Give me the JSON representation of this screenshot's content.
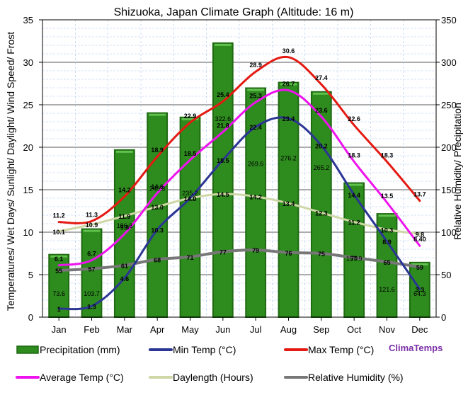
{
  "chart_data": {
    "type": "bar",
    "title": "Shizuoka, Japan Climate Graph (Altitude: 16 m)",
    "ylabel_left": "Temperatures/ Wet Days/ Sunlight/ Daylight/ Wind Speed/ Frost",
    "ylabel_right": "Relative Humidity/ Precipitation",
    "ylim_left": [
      0,
      35
    ],
    "ylim_right": [
      0,
      350
    ],
    "yticks_left": [
      "0",
      "5",
      "10",
      "15",
      "20",
      "25",
      "30",
      "35"
    ],
    "yticks_right": [
      "0",
      "50",
      "100",
      "150",
      "200",
      "250",
      "300",
      "350"
    ],
    "categories": [
      "Jan",
      "Feb",
      "Mar",
      "Apr",
      "May",
      "Jun",
      "Jul",
      "Aug",
      "Sep",
      "Oct",
      "Nov",
      "Dec"
    ],
    "precipitation": {
      "name": "Precipitation (mm)",
      "axis": "right",
      "color": "#2e8b1e",
      "values": [
        73.6,
        103.7,
        196.8,
        240.3,
        235.2,
        322.6,
        269.6,
        276.2,
        265.2,
        157.9,
        121.6,
        64.3
      ],
      "labels": [
        "73.6",
        "103.7",
        "196.8",
        "240.3",
        "235.2",
        "322.6",
        "269.6",
        "276.2",
        "265.2",
        "157.9",
        "121.6",
        "64.3"
      ]
    },
    "min_temp": {
      "name": "Min Temp (°C)",
      "axis": "left",
      "color": "#2b3593",
      "values": [
        1.0,
        1.3,
        4.6,
        10.3,
        14.0,
        18.5,
        22.4,
        23.4,
        20.2,
        14.4,
        8.9,
        3.3
      ],
      "labels": [
        "1",
        "1.3",
        "4.6",
        "10.3",
        "14.0",
        "18.5",
        "22.4",
        "23.4",
        "20.2",
        "14.4",
        "8.9",
        "3.3"
      ]
    },
    "max_temp": {
      "name": "Max Temp (°C)",
      "axis": "left",
      "color": "#e41a12",
      "values": [
        11.2,
        11.3,
        14.2,
        18.9,
        22.9,
        25.4,
        28.9,
        30.6,
        27.4,
        22.6,
        18.3,
        13.7
      ],
      "labels": [
        "11.2",
        "11.3",
        "14.2",
        "18.9",
        "22.9",
        "25.4",
        "28.9",
        "30.6",
        "27.4",
        "22.6",
        "18.3",
        "13.7"
      ]
    },
    "avg_temp": {
      "name": "Average Temp (°C)",
      "axis": "left",
      "color": "#ee12ee",
      "values": [
        6.1,
        6.7,
        9.8,
        14.6,
        18.5,
        21.8,
        25.3,
        26.7,
        23.6,
        18.3,
        13.5,
        8.4
      ],
      "labels": [
        "6.1",
        "6.7",
        "9.8",
        "14.6",
        "18.5",
        "21.8",
        "25.3",
        "26.7",
        "23.6",
        "18.3",
        "13.5",
        "8.40"
      ]
    },
    "daylength": {
      "name": "Daylength (Hours)",
      "axis": "left",
      "color": "#cfd7a6",
      "values": [
        10.1,
        10.9,
        11.9,
        13.0,
        14.0,
        14.5,
        14.2,
        13.4,
        12.3,
        11.2,
        10.3,
        9.8
      ],
      "labels": [
        "10.1",
        "10.9",
        "11.9",
        "13.0",
        "14.0",
        "14.5",
        "14.2",
        "13.4",
        "12.3",
        "11.2",
        "10.3",
        "9.8"
      ]
    },
    "humidity": {
      "name": "Relative Humidity (%)",
      "axis": "right",
      "color": "#777777",
      "values": [
        55,
        57,
        61,
        68,
        71,
        77,
        79,
        76,
        75,
        70,
        65,
        59
      ],
      "labels": [
        "55",
        "57",
        "61",
        "68",
        "71",
        "77",
        "79",
        "76",
        "75",
        "70",
        "65",
        "59"
      ]
    },
    "legend": [
      {
        "key": "precipitation",
        "label": "Precipitation (mm)",
        "kind": "bar"
      },
      {
        "key": "min_temp",
        "label": "Min Temp (°C)",
        "kind": "line"
      },
      {
        "key": "max_temp",
        "label": "Max Temp (°C)",
        "kind": "line"
      },
      {
        "key": "avg_temp",
        "label": "Average Temp (°C)",
        "kind": "line"
      },
      {
        "key": "daylength",
        "label": "Daylength (Hours)",
        "kind": "line"
      },
      {
        "key": "humidity",
        "label": "Relative Humidity (%)",
        "kind": "line"
      }
    ],
    "brand": "ClimaTemps",
    "brand_color": "#7b2fa8",
    "grid_minor_color": "#aac8ee",
    "grid_major_color": "#222222"
  }
}
